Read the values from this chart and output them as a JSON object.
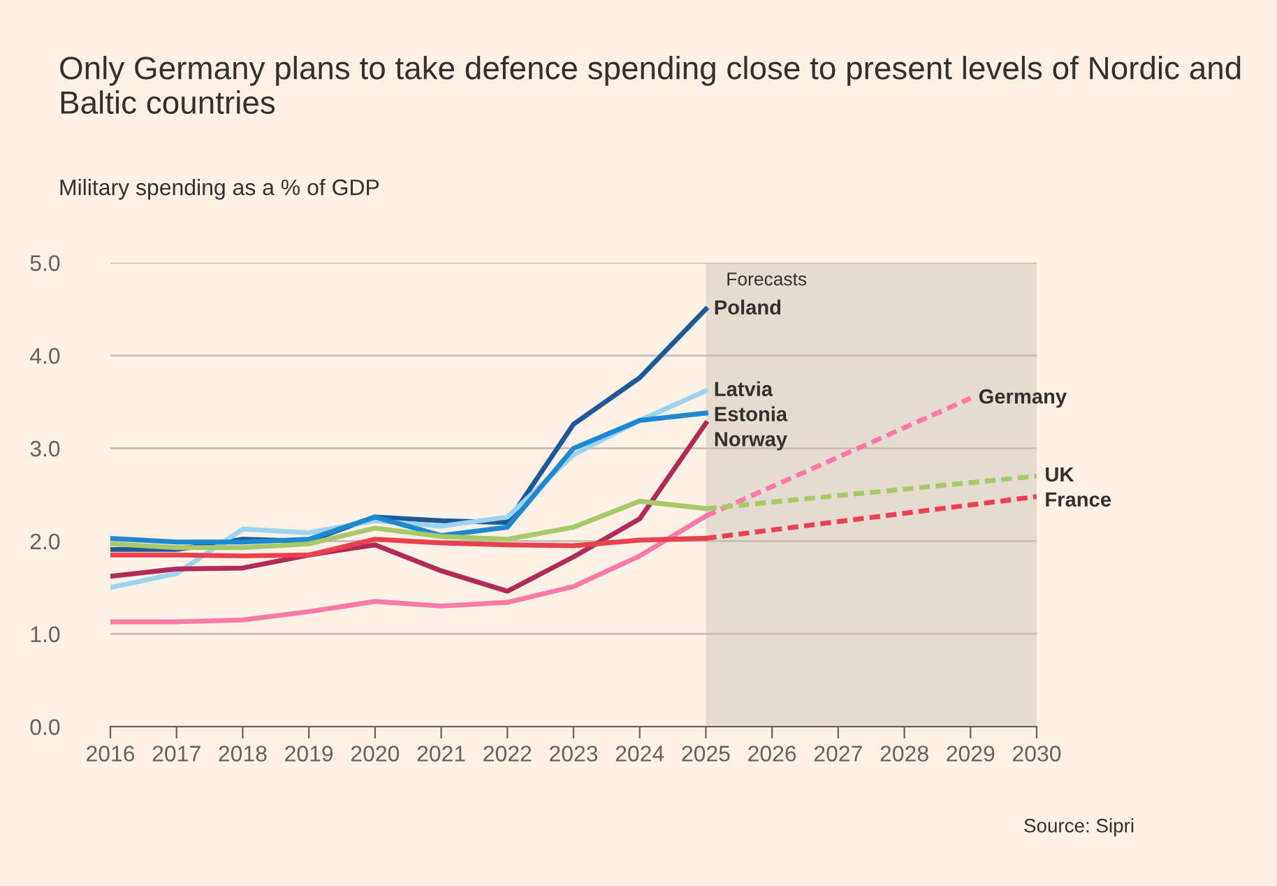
{
  "chart_data": {
    "type": "line",
    "title": "Only Germany plans to take defence spending close to present levels of Nordic and Baltic countries",
    "subtitle": "Military spending as a % of GDP",
    "x": [
      2016,
      2017,
      2018,
      2019,
      2020,
      2021,
      2022,
      2023,
      2024,
      2025
    ],
    "series": [
      {
        "name": "Poland",
        "color": "#1f5a96",
        "values": [
          1.91,
          1.91,
          2.02,
          2.0,
          2.26,
          2.22,
          2.2,
          3.26,
          3.76,
          4.5
        ]
      },
      {
        "name": "Latvia",
        "color": "#9dd3ee",
        "values": [
          1.5,
          1.65,
          2.13,
          2.09,
          2.22,
          2.16,
          2.26,
          2.93,
          3.3,
          3.62
        ]
      },
      {
        "name": "Estonia",
        "color": "#1e88d0",
        "values": [
          2.03,
          1.99,
          1.99,
          2.02,
          2.26,
          2.06,
          2.15,
          3.0,
          3.3,
          3.38
        ]
      },
      {
        "name": "Norway",
        "color": "#b02a5a",
        "values": [
          1.62,
          1.7,
          1.71,
          1.85,
          1.96,
          1.68,
          1.46,
          1.83,
          2.24,
          3.27
        ]
      },
      {
        "color": "#ff7aa8",
        "values": [
          1.13,
          1.13,
          1.15,
          1.24,
          1.35,
          1.3,
          1.34,
          1.51,
          1.84,
          2.27
        ]
      },
      {
        "color": "#a7c96a",
        "values": [
          1.97,
          1.93,
          1.93,
          1.97,
          2.14,
          2.05,
          2.02,
          2.15,
          2.43,
          2.35
        ]
      },
      {
        "color": "#e8414f",
        "values": [
          1.85,
          1.85,
          1.84,
          1.85,
          2.02,
          1.98,
          1.96,
          1.95,
          2.01,
          2.03
        ]
      },
      {
        "name": "Germany",
        "color": "#ff7aa8",
        "line_style": "dashed",
        "x": [
          2025,
          2029
        ],
        "values": [
          2.27,
          3.54
        ]
      },
      {
        "name": "UK",
        "color": "#a7c96a",
        "line_style": "dashed",
        "x": [
          2025,
          2030
        ],
        "values": [
          2.35,
          2.7
        ]
      },
      {
        "name": "France",
        "color": "#e8414f",
        "line_style": "dashed",
        "x": [
          2025,
          2030
        ],
        "values": [
          2.03,
          2.48
        ]
      }
    ],
    "bands": [
      {
        "axis": "x",
        "from": 2025,
        "to": 2030,
        "label": "Forecasts",
        "color": "#e6dbd1"
      }
    ],
    "xlim": [
      2016,
      2030
    ],
    "xticks": [
      2016,
      2017,
      2018,
      2019,
      2020,
      2021,
      2022,
      2023,
      2024,
      2025,
      2026,
      2027,
      2028,
      2029,
      2030
    ],
    "ylim": [
      0,
      5
    ],
    "yticks": [
      {
        "value": 0,
        "label": "0.0"
      },
      {
        "value": 1,
        "label": "1.0"
      },
      {
        "value": 2,
        "label": "2.0"
      },
      {
        "value": 3,
        "label": "3.0"
      },
      {
        "value": 4,
        "label": "4.0"
      },
      {
        "value": 5,
        "label": "5.0"
      }
    ],
    "grid": "y",
    "line_style": "solid",
    "annotations": [
      "Source: Sipri"
    ]
  }
}
